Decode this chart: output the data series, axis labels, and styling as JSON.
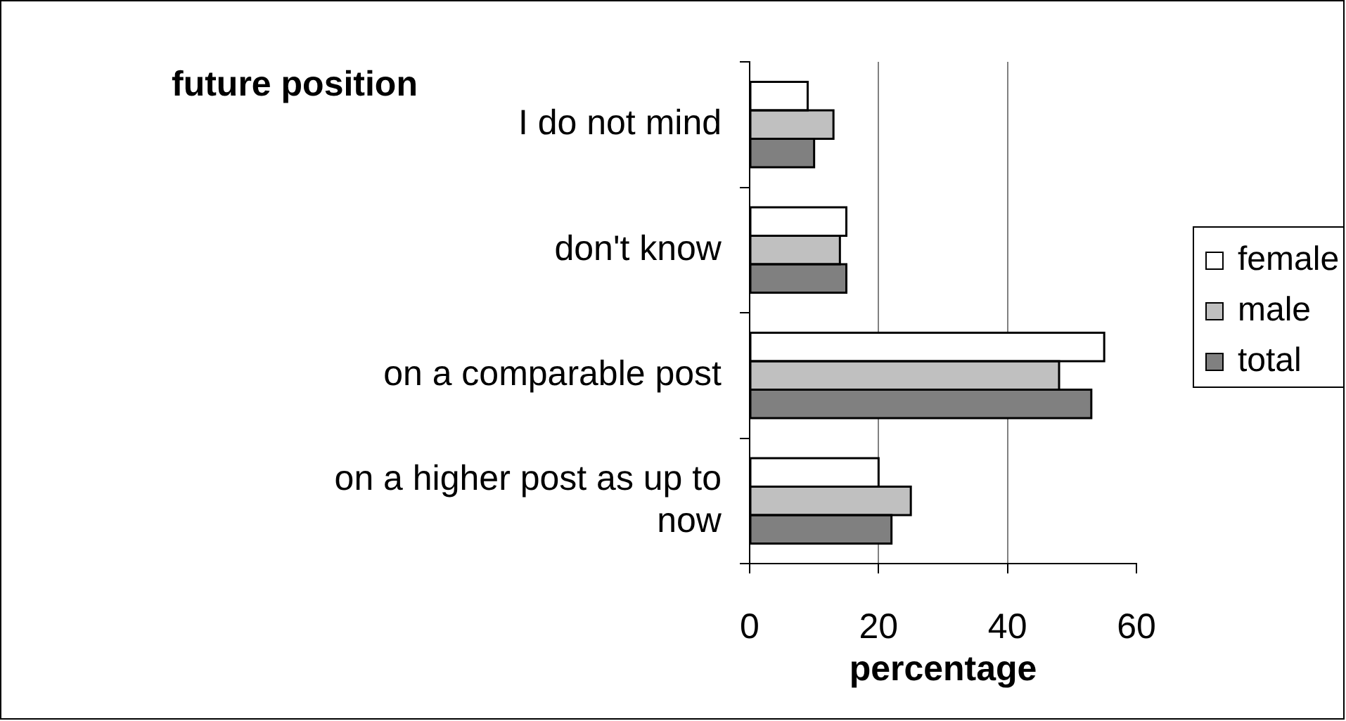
{
  "chart_data": {
    "type": "bar",
    "orientation": "horizontal",
    "ylabel": "future position",
    "xlabel": "percentage",
    "categories": [
      "I do not mind",
      "don't know",
      "on a comparable post",
      "on a higher post as up to now"
    ],
    "series": [
      {
        "name": "female",
        "color": "#ffffff",
        "values": [
          9,
          15,
          55,
          20
        ]
      },
      {
        "name": "male",
        "color": "#c0c0c0",
        "values": [
          13,
          14,
          48,
          25
        ]
      },
      {
        "name": "total",
        "color": "#808080",
        "values": [
          10,
          15,
          53,
          22
        ]
      }
    ],
    "xlim": [
      0,
      60
    ],
    "xticks": [
      0,
      20,
      40,
      60
    ],
    "grid": "x",
    "legend": "right"
  }
}
